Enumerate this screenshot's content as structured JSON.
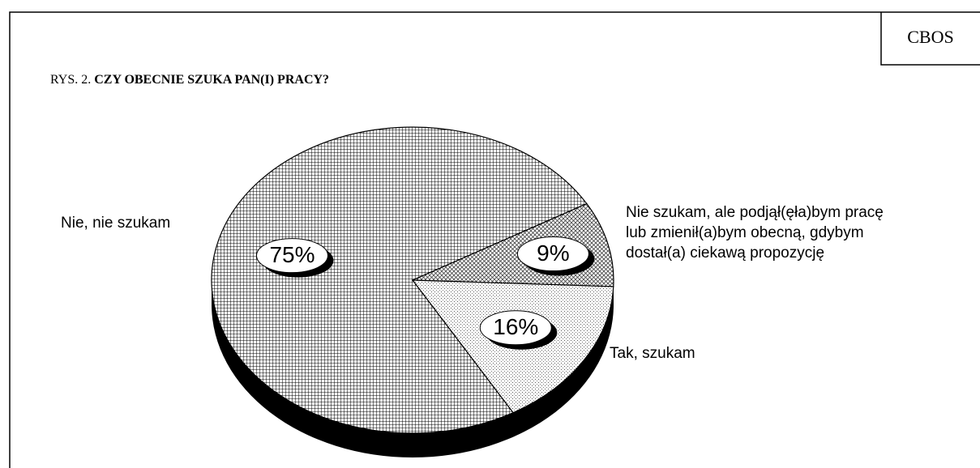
{
  "source": "CBOS",
  "chart_data": {
    "type": "pie",
    "figure_label": "RYS. 2.",
    "title": "CZY OBECNIE SZUKA PAN(I) PRACY?",
    "categories": [
      "Nie szukam, ale podjął(ęła)bym pracę lub zmienił(a)bym obecną, gdybym dostał(a) ciekawą propozycję",
      "Tak, szukam",
      "Nie, nie szukam"
    ],
    "values": [
      9,
      16,
      75
    ],
    "value_labels": [
      "9%",
      "16%",
      "75%"
    ],
    "colors": [
      "#555555",
      "#777777",
      "#aaaaaa"
    ]
  }
}
